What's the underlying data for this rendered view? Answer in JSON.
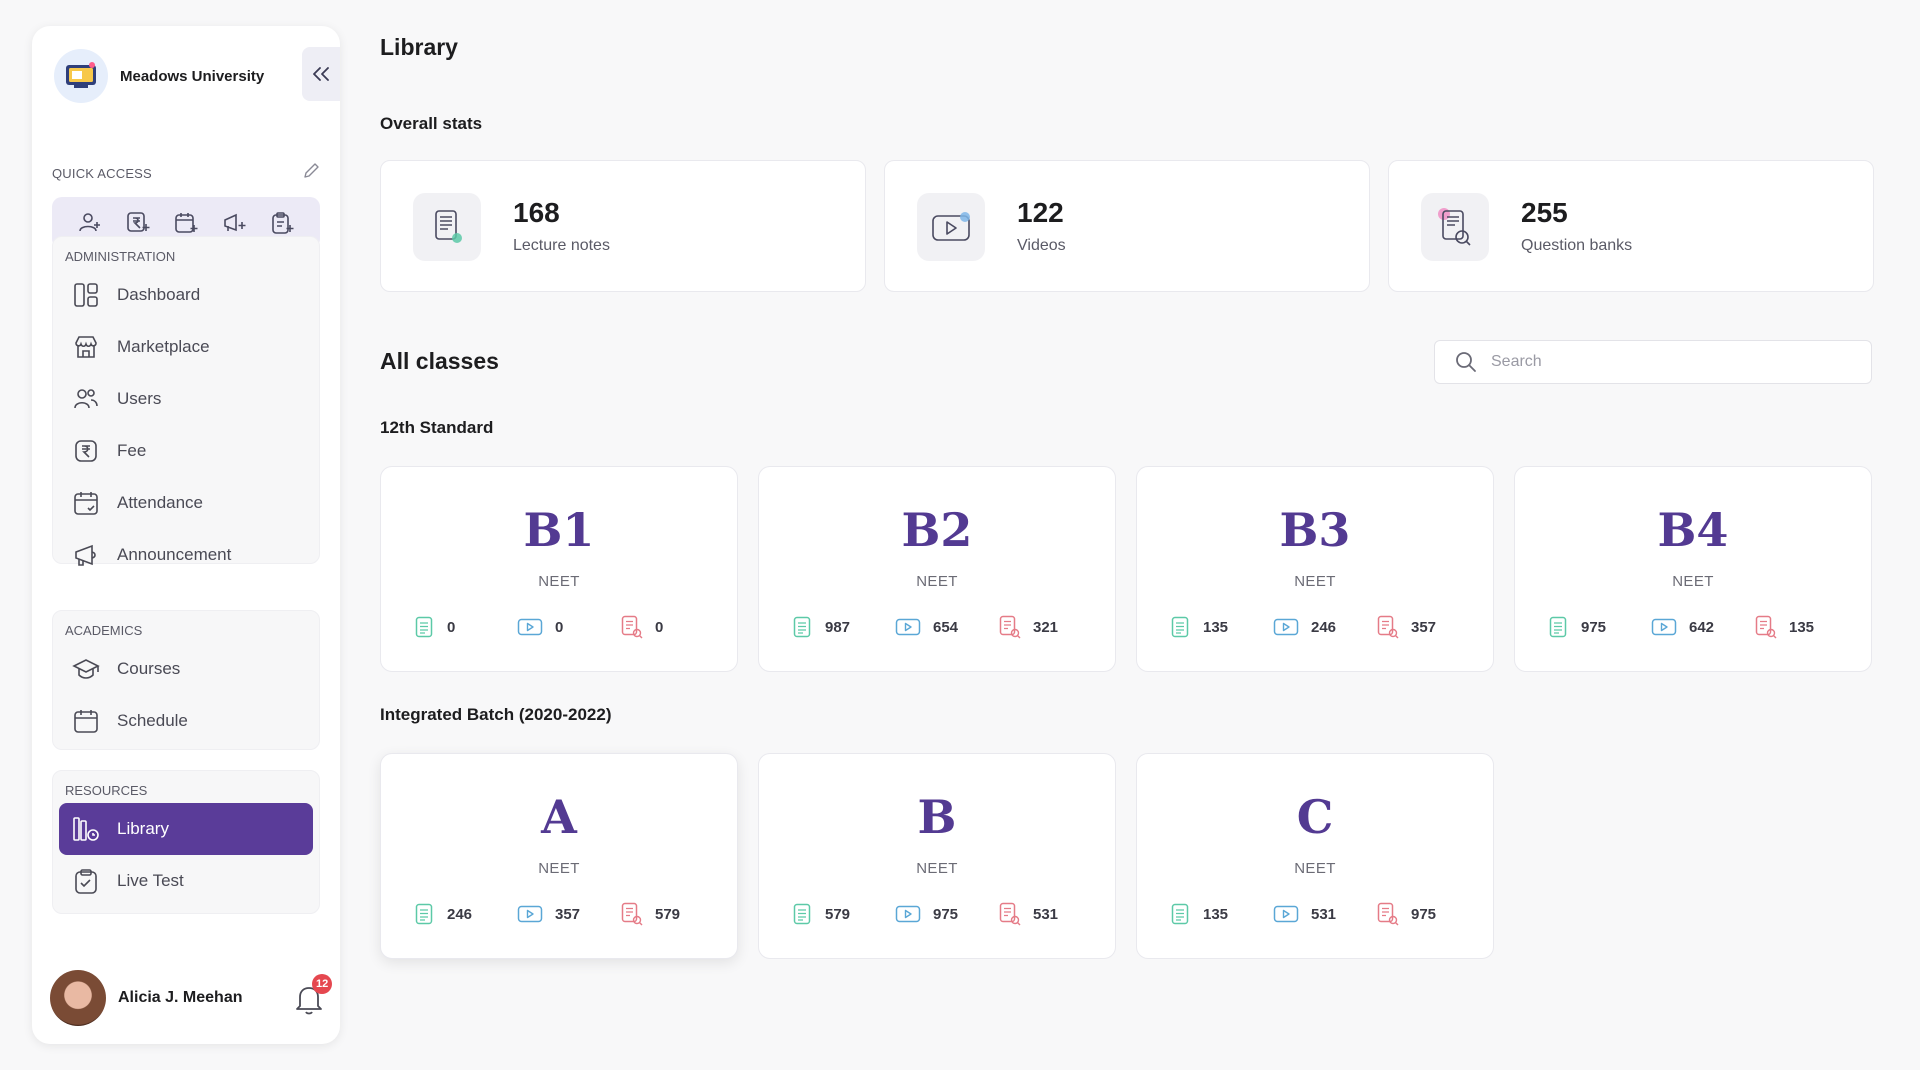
{
  "sidebar": {
    "org_name": "Meadows University",
    "quick_access_label": "QUICK ACCESS",
    "quick_access_icons": [
      "add-user-icon",
      "add-fee-icon",
      "add-calendar-icon",
      "add-announcement-icon",
      "add-test-icon"
    ],
    "sections": [
      {
        "title": "ADMINISTRATION",
        "items": [
          {
            "label": "Dashboard",
            "icon": "dashboard-icon"
          },
          {
            "label": "Marketplace",
            "icon": "store-icon"
          },
          {
            "label": "Users",
            "icon": "users-icon"
          },
          {
            "label": "Fee",
            "icon": "rupee-icon"
          },
          {
            "label": "Attendance",
            "icon": "calendar-check-icon"
          },
          {
            "label": "Announcement",
            "icon": "megaphone-icon"
          }
        ]
      },
      {
        "title": "ACADEMICS",
        "items": [
          {
            "label": "Courses",
            "icon": "graduation-cap-icon"
          },
          {
            "label": "Schedule",
            "icon": "calendar-icon"
          }
        ]
      },
      {
        "title": "RESOURCES",
        "items": [
          {
            "label": "Library",
            "icon": "library-icon",
            "active": true
          },
          {
            "label": "Live Test",
            "icon": "clipboard-check-icon"
          }
        ]
      }
    ],
    "user": {
      "name": "Alicia J. Meehan",
      "notification_count": "12"
    }
  },
  "main": {
    "title": "Library",
    "stats_heading": "Overall stats",
    "stats": [
      {
        "value": "168",
        "label": "Lecture notes",
        "icon": "lecture-notes-icon"
      },
      {
        "value": "122",
        "label": "Videos",
        "icon": "video-icon"
      },
      {
        "value": "255",
        "label": "Question banks",
        "icon": "question-bank-icon"
      }
    ],
    "classes_heading": "All classes",
    "search": {
      "placeholder": "Search"
    },
    "groups": [
      {
        "title": "12th Standard",
        "classes": [
          {
            "name": "B1",
            "sub": "NEET",
            "notes": "0",
            "videos": "0",
            "questions": "0"
          },
          {
            "name": "B2",
            "sub": "NEET",
            "notes": "987",
            "videos": "654",
            "questions": "321"
          },
          {
            "name": "B3",
            "sub": "NEET",
            "notes": "135",
            "videos": "246",
            "questions": "357"
          },
          {
            "name": "B4",
            "sub": "NEET",
            "notes": "975",
            "videos": "642",
            "questions": "135"
          }
        ]
      },
      {
        "title": "Integrated Batch (2020-2022)",
        "classes": [
          {
            "name": "A",
            "sub": "NEET",
            "notes": "246",
            "videos": "357",
            "questions": "579"
          },
          {
            "name": "B",
            "sub": "NEET",
            "notes": "579",
            "videos": "975",
            "questions": "531"
          },
          {
            "name": "C",
            "sub": "NEET",
            "notes": "135",
            "videos": "531",
            "questions": "975"
          }
        ]
      }
    ]
  },
  "colors": {
    "accent": "#5a3c99",
    "class_title": "#533a92",
    "notes_icon": "#4fc3a1",
    "video_icon": "#5aa7d6",
    "question_icon": "#e57b87",
    "badge": "#e5474f"
  }
}
